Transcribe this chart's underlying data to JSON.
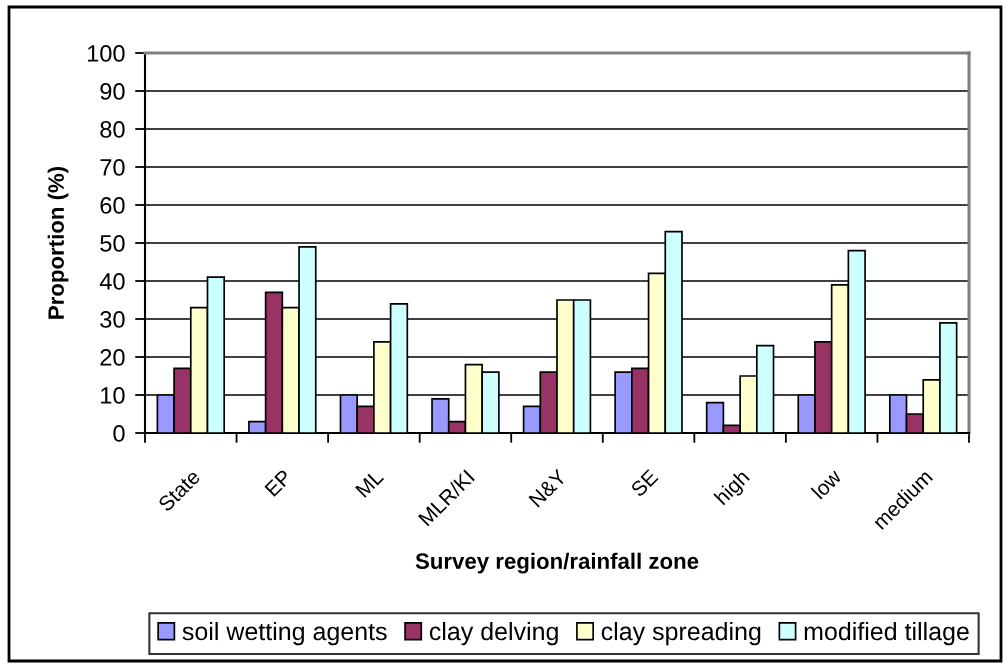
{
  "chart_data": {
    "type": "bar",
    "xlabel": "Survey region/rainfall zone",
    "ylabel": "Proportion (%)",
    "categories": [
      "State",
      "EP",
      "ML",
      "MLR/KI",
      "N&Y",
      "SE",
      "high",
      "low",
      "medium"
    ],
    "series": [
      {
        "name": "soil wetting agents",
        "color": "#9999ff",
        "values": [
          10,
          3,
          10,
          9,
          7,
          16,
          8,
          10,
          10
        ]
      },
      {
        "name": "clay delving",
        "color": "#993366",
        "values": [
          17,
          37,
          7,
          3,
          16,
          17,
          2,
          24,
          5
        ]
      },
      {
        "name": "clay spreading",
        "color": "#ffffcc",
        "values": [
          33,
          33,
          24,
          18,
          35,
          42,
          15,
          39,
          14
        ]
      },
      {
        "name": "modified tillage",
        "color": "#ccffff",
        "values": [
          41,
          49,
          34,
          16,
          35,
          53,
          23,
          48,
          29
        ]
      }
    ],
    "ylim": [
      0,
      100
    ],
    "yticks": [
      0,
      10,
      20,
      30,
      40,
      50,
      60,
      70,
      80,
      90,
      100
    ],
    "grid": "y",
    "legend": "bottom"
  }
}
